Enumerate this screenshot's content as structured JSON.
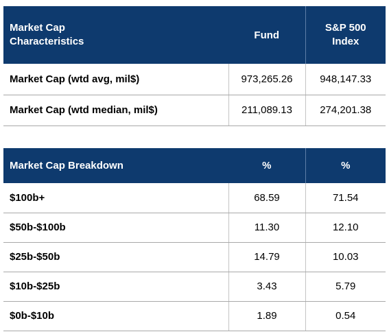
{
  "characteristics": {
    "header": {
      "label": "Market Cap Characteristics",
      "label_line1": "Market Cap",
      "label_line2": "Characteristics",
      "col1": "Fund",
      "col2_line1": "S&P 500",
      "col2_line2": "Index"
    },
    "rows": [
      {
        "label": "Market Cap (wtd avg, mil$)",
        "fund": "973,265.26",
        "index": "948,147.33"
      },
      {
        "label": "Market Cap (wtd median, mil$)",
        "fund": "211,089.13",
        "index": "274,201.38"
      }
    ]
  },
  "breakdown": {
    "header": {
      "label": "Market Cap Breakdown",
      "col1": "%",
      "col2": "%"
    },
    "rows": [
      {
        "label": "$100b+",
        "fund": "68.59",
        "index": "71.54"
      },
      {
        "label": "$50b-$100b",
        "fund": "11.30",
        "index": "12.10"
      },
      {
        "label": "$25b-$50b",
        "fund": "14.79",
        "index": "10.03"
      },
      {
        "label": "$10b-$25b",
        "fund": "3.43",
        "index": "5.79"
      },
      {
        "label": "$0b-$10b",
        "fund": "1.89",
        "index": "0.54"
      }
    ]
  },
  "colors": {
    "header_bg": "#0e3a6e",
    "header_text": "#ffffff",
    "row_divider": "#a8a8a8"
  }
}
